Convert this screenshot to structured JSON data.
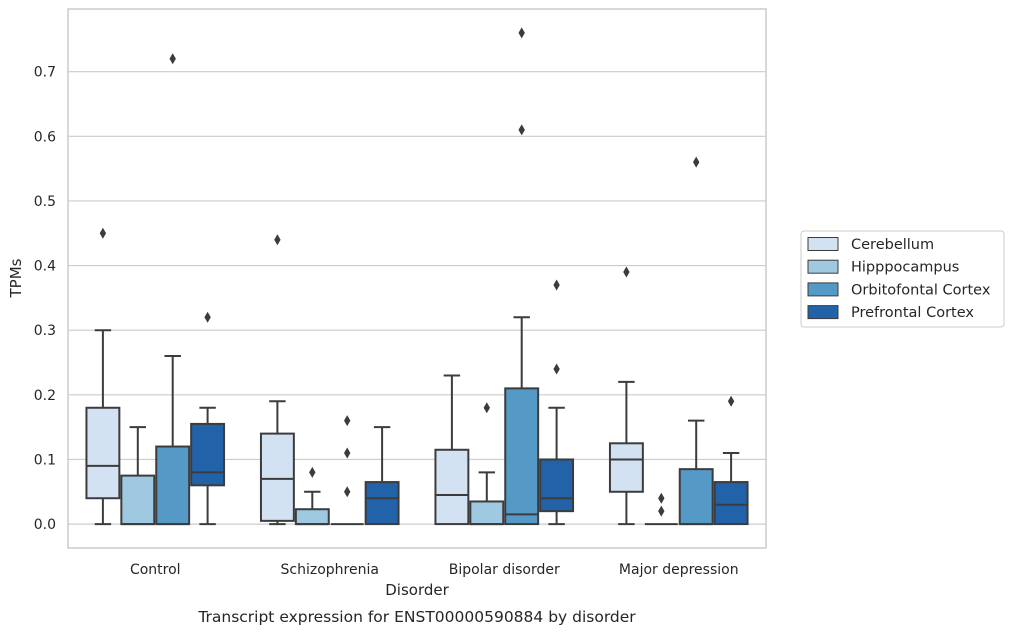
{
  "chart_data": {
    "type": "box",
    "xlabel": "Disorder",
    "ylabel": "TPMs",
    "caption": "Transcript expression for ENST00000590884 by disorder",
    "ylim": [
      -0.037,
      0.797
    ],
    "yticks": [
      "0.0",
      "0.1",
      "0.2",
      "0.3",
      "0.4",
      "0.5",
      "0.6",
      "0.7"
    ],
    "grid": "horizontal",
    "legend_position": "right",
    "categories": [
      "Control",
      "Schizophrenia",
      "Bipolar disorder",
      "Major depression"
    ],
    "series": [
      {
        "name": "Cerebellum",
        "color": "#d2e2f2",
        "boxes": [
          {
            "whisker_low": 0.0,
            "q1": 0.04,
            "median": 0.09,
            "q3": 0.18,
            "whisker_high": 0.3,
            "outliers": [
              0.45
            ]
          },
          {
            "whisker_low": 0.0,
            "q1": 0.005,
            "median": 0.07,
            "q3": 0.14,
            "whisker_high": 0.19,
            "outliers": [
              0.44
            ]
          },
          {
            "whisker_low": 0.0,
            "q1": 0.0,
            "median": 0.045,
            "q3": 0.115,
            "whisker_high": 0.23,
            "outliers": []
          },
          {
            "whisker_low": 0.0,
            "q1": 0.05,
            "median": 0.1,
            "q3": 0.125,
            "whisker_high": 0.22,
            "outliers": [
              0.39
            ]
          }
        ]
      },
      {
        "name": "Hipppocampus",
        "color": "#9ec9e1",
        "boxes": [
          {
            "whisker_low": 0.0,
            "q1": 0.0,
            "median": 0.0,
            "q3": 0.075,
            "whisker_high": 0.15,
            "outliers": []
          },
          {
            "whisker_low": 0.0,
            "q1": 0.0,
            "median": 0.0,
            "q3": 0.023,
            "whisker_high": 0.05,
            "outliers": [
              0.08
            ]
          },
          {
            "whisker_low": 0.0,
            "q1": 0.0,
            "median": 0.0,
            "q3": 0.035,
            "whisker_high": 0.08,
            "outliers": [
              0.18
            ]
          },
          {
            "whisker_low": 0.0,
            "q1": 0.0,
            "median": 0.0,
            "q3": 0.0,
            "whisker_high": 0.0,
            "outliers": [
              0.02,
              0.04
            ]
          }
        ]
      },
      {
        "name": "Orbitofontal Cortex",
        "color": "#5599c7",
        "boxes": [
          {
            "whisker_low": 0.0,
            "q1": 0.0,
            "median": 0.0,
            "q3": 0.12,
            "whisker_high": 0.26,
            "outliers": [
              0.72
            ]
          },
          {
            "whisker_low": 0.0,
            "q1": 0.0,
            "median": 0.0,
            "q3": 0.0,
            "whisker_high": 0.0,
            "outliers": [
              0.05,
              0.11,
              0.16
            ]
          },
          {
            "whisker_low": 0.0,
            "q1": 0.0,
            "median": 0.015,
            "q3": 0.21,
            "whisker_high": 0.32,
            "outliers": [
              0.61,
              0.76
            ]
          },
          {
            "whisker_low": 0.0,
            "q1": 0.0,
            "median": 0.0,
            "q3": 0.085,
            "whisker_high": 0.16,
            "outliers": [
              0.56
            ]
          }
        ]
      },
      {
        "name": "Prefrontal Cortex",
        "color": "#2162a8",
        "boxes": [
          {
            "whisker_low": 0.0,
            "q1": 0.06,
            "median": 0.08,
            "q3": 0.155,
            "whisker_high": 0.18,
            "outliers": [
              0.32
            ]
          },
          {
            "whisker_low": 0.0,
            "q1": 0.0,
            "median": 0.04,
            "q3": 0.065,
            "whisker_high": 0.15,
            "outliers": []
          },
          {
            "whisker_low": 0.0,
            "q1": 0.02,
            "median": 0.04,
            "q3": 0.1,
            "whisker_high": 0.18,
            "outliers": [
              0.24,
              0.37
            ]
          },
          {
            "whisker_low": 0.0,
            "q1": 0.0,
            "median": 0.03,
            "q3": 0.065,
            "whisker_high": 0.11,
            "outliers": [
              0.19
            ]
          }
        ]
      }
    ]
  }
}
